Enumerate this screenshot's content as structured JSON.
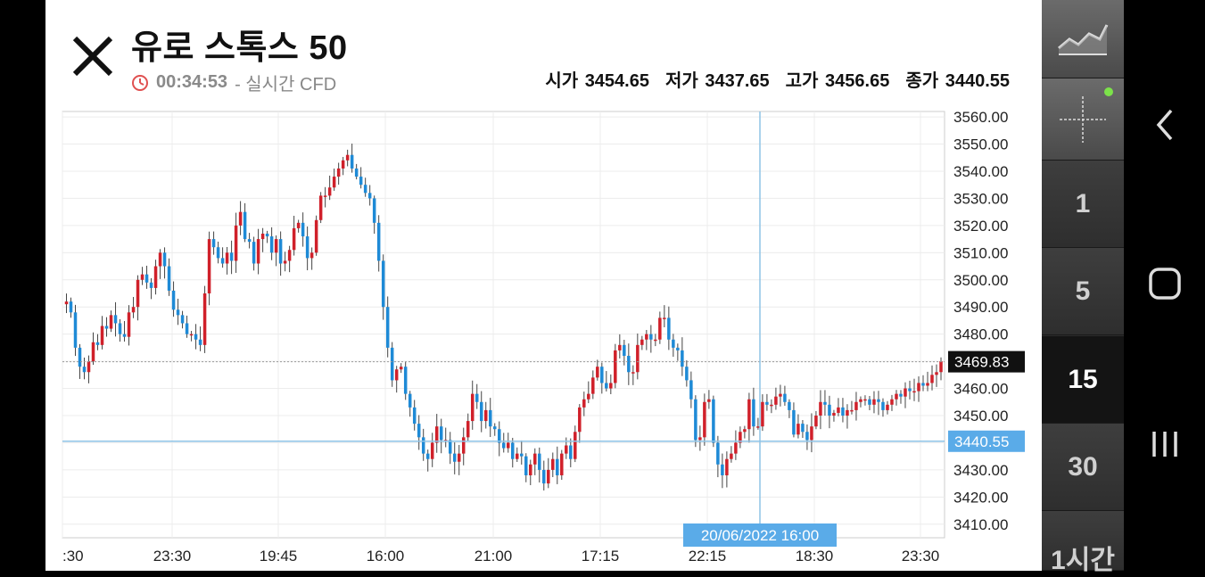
{
  "header": {
    "title": "유로 스톡스 50",
    "time": "00:34:53",
    "subtitle": "- 실시간 CFD",
    "ohlc": [
      {
        "label": "시가",
        "value": "3454.65"
      },
      {
        "label": "저가",
        "value": "3437.65"
      },
      {
        "label": "고가",
        "value": "3456.65"
      },
      {
        "label": "종가",
        "value": "3440.55"
      }
    ]
  },
  "intervals": [
    {
      "label": "1",
      "active": false
    },
    {
      "label": "5",
      "active": false
    },
    {
      "label": "15",
      "active": true
    },
    {
      "label": "30",
      "active": false
    },
    {
      "label": "1시간",
      "active": false
    }
  ],
  "colors": {
    "up": "#d0202a",
    "down": "#1e8ad6",
    "crosshair": "#8ec3e6",
    "price_badge": "#111111",
    "cross_badge": "#5aabe8"
  },
  "chart_data": {
    "type": "candlestick",
    "ylim": [
      3405,
      3562
    ],
    "y_ticks": [
      "3560.00",
      "3550.00",
      "3540.00",
      "3530.00",
      "3520.00",
      "3510.00",
      "3500.00",
      "3490.00",
      "3480.00",
      "3470.00",
      "3460.00",
      "3450.00",
      "3440.00",
      "3430.00",
      "3420.00",
      "3410.00"
    ],
    "x_ticks": [
      ":30",
      "23:30",
      "19:45",
      "16:00",
      "21:00",
      "17:15",
      "22:15",
      "18:30",
      "23:30"
    ],
    "current_price": "3469.83",
    "crosshair_price": "3440.55",
    "crosshair_time": "20/06/2022 16:00",
    "closes": [
      3492,
      3488,
      3475,
      3468,
      3466,
      3470,
      3477,
      3476,
      3483,
      3482,
      3487,
      3484,
      3480,
      3479,
      3488,
      3490,
      3500,
      3502,
      3499,
      3497,
      3505,
      3510,
      3505,
      3496,
      3489,
      3487,
      3484,
      3480,
      3480,
      3478,
      3476,
      3495,
      3515,
      3512,
      3508,
      3506,
      3510,
      3507,
      3520,
      3525,
      3515,
      3514,
      3506,
      3515,
      3517,
      3516,
      3510,
      3515,
      3506,
      3507,
      3511,
      3519,
      3521,
      3516,
      3508,
      3510,
      3522,
      3531,
      3531,
      3534,
      3538,
      3541,
      3544,
      3546,
      3541,
      3538,
      3535,
      3532,
      3530,
      3521,
      3507,
      3490,
      3475,
      3463,
      3467,
      3468,
      3458,
      3453,
      3447,
      3442,
      3436,
      3434,
      3440,
      3446,
      3441,
      3441,
      3436,
      3433,
      3436,
      3442,
      3448,
      3458,
      3455,
      3448,
      3452,
      3446,
      3445,
      3440,
      3438,
      3440,
      3434,
      3436,
      3435,
      3428,
      3432,
      3436,
      3430,
      3425,
      3430,
      3434,
      3428,
      3436,
      3439,
      3434,
      3444,
      3453,
      3456,
      3458,
      3464,
      3468,
      3462,
      3460,
      3462,
      3474,
      3476,
      3472,
      3466,
      3466,
      3476,
      3478,
      3480,
      3478,
      3478,
      3486,
      3486,
      3478,
      3475,
      3474,
      3468,
      3463,
      3456,
      3441,
      3442,
      3455,
      3456,
      3440,
      3432,
      3428,
      3434,
      3436,
      3440,
      3444,
      3445,
      3456,
      3446,
      3446,
      3455,
      3454,
      3454,
      3457,
      3458,
      3455,
      3452,
      3443,
      3447,
      3444,
      3441,
      3446,
      3450,
      3455,
      3454,
      3450,
      3451,
      3453,
      3450,
      3452,
      3452,
      3455,
      3456,
      3456,
      3454,
      3456,
      3455,
      3452,
      3454,
      3456,
      3458,
      3457,
      3460,
      3459,
      3459,
      3462,
      3461,
      3462,
      3465,
      3466,
      3470
    ]
  }
}
